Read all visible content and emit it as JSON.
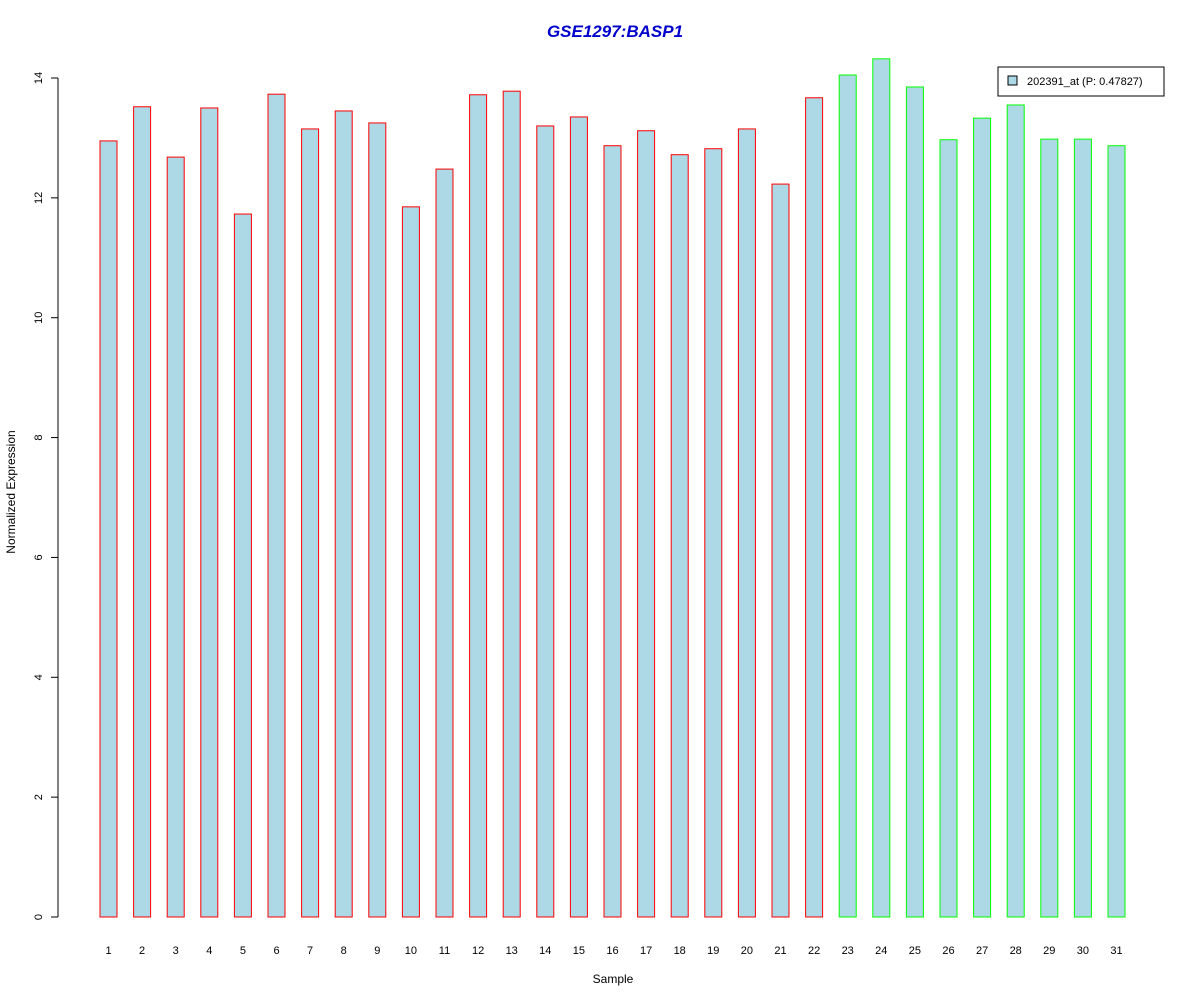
{
  "chart_data": {
    "type": "bar",
    "title": "GSE1297:BASP1",
    "xlabel": "Sample",
    "ylabel": "Normalized Expression",
    "ylim": [
      0,
      14
    ],
    "yticks": [
      "0",
      "2",
      "4",
      "6",
      "8",
      "10",
      "12",
      "14"
    ],
    "categories": [
      "1",
      "2",
      "3",
      "4",
      "5",
      "6",
      "7",
      "8",
      "9",
      "10",
      "11",
      "12",
      "13",
      "14",
      "15",
      "16",
      "17",
      "18",
      "19",
      "20",
      "21",
      "22",
      "23",
      "24",
      "25",
      "26",
      "27",
      "28",
      "29",
      "30",
      "31"
    ],
    "values": [
      12.95,
      13.52,
      12.68,
      13.5,
      11.73,
      13.73,
      13.15,
      13.45,
      13.25,
      11.85,
      12.48,
      13.72,
      13.78,
      13.2,
      13.35,
      12.87,
      13.12,
      12.72,
      12.82,
      13.15,
      12.23,
      13.67,
      14.05,
      14.32,
      13.85,
      12.97,
      13.33,
      13.55,
      12.98,
      12.98,
      12.87
    ],
    "groups": [
      "red",
      "red",
      "red",
      "red",
      "red",
      "red",
      "red",
      "red",
      "red",
      "red",
      "red",
      "red",
      "red",
      "red",
      "red",
      "red",
      "red",
      "red",
      "red",
      "red",
      "red",
      "red",
      "green",
      "green",
      "green",
      "green",
      "green",
      "green",
      "green",
      "green",
      "green"
    ],
    "grid": false,
    "legend": {
      "position": "top-right",
      "entries": [
        "202391_at (P: 0.47827)"
      ]
    }
  },
  "colors": {
    "bar_fill": "#add8e6",
    "border_group_1": "#ff0000",
    "border_group_2": "#00ff00",
    "title": "#0000cc"
  }
}
